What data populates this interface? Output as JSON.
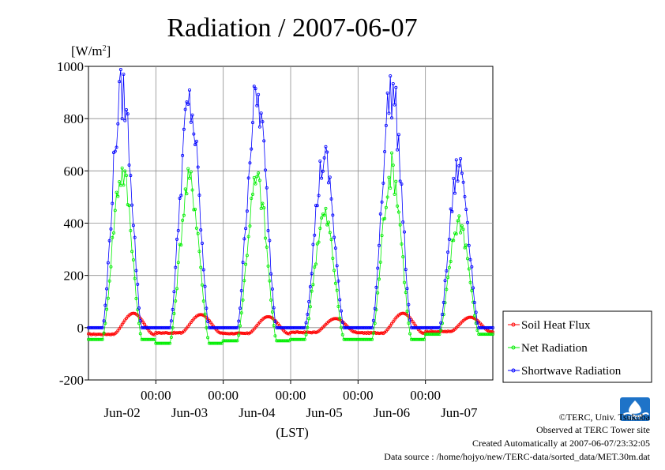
{
  "chart_data": {
    "type": "line",
    "title": "Radiation / 2007-06-07",
    "ylabel": "[W/m2]",
    "ylabel_main": "[W/m",
    "ylabel_sup": "2",
    "ylabel_close": "]",
    "xlabel": "(LST)",
    "ylim": [
      -200,
      1000
    ],
    "yticks": [
      -200,
      0,
      200,
      400,
      600,
      800,
      1000
    ],
    "ytick_labels": [
      "-200",
      "0",
      "200",
      "400",
      "600",
      "800",
      "1000"
    ],
    "xlim": [
      0,
      144
    ],
    "xticks": [
      {
        "hour": 24,
        "time": "00:00",
        "date": "Jun-02"
      },
      {
        "hour": 48,
        "time": "00:00",
        "date": "Jun-03"
      },
      {
        "hour": 72,
        "time": "00:00",
        "date": "Jun-04"
      },
      {
        "hour": 96,
        "time": "00:00",
        "date": "Jun-05"
      },
      {
        "hour": 120,
        "time": "00:00",
        "date": "Jun-06"
      },
      {
        "hour": 144,
        "time": "",
        "date": "Jun-07"
      }
    ],
    "grid": true,
    "legend_position": "right-bottom",
    "series": [
      {
        "name": "Soil Heat Flux",
        "color": "#ff0000",
        "marker": "circle",
        "profile": {
          "night": [
            -25,
            -20,
            -22,
            -18,
            -20,
            -15
          ],
          "peak": [
            55,
            50,
            42,
            35,
            55,
            40
          ],
          "day_offset": 4
        }
      },
      {
        "name": "Net Radiation",
        "color": "#00ee00",
        "marker": "circle",
        "profile": {
          "night": [
            -45,
            -60,
            -50,
            -45,
            -45,
            -25
          ],
          "peak": [
            640,
            600,
            600,
            460,
            650,
            440
          ],
          "day_offset": 0
        }
      },
      {
        "name": "Shortwave Radiation",
        "color": "#0000ff",
        "marker": "circle",
        "profile": {
          "night": [
            0,
            0,
            0,
            0,
            0,
            0
          ],
          "peak": [
            965,
            910,
            935,
            690,
            975,
            660
          ],
          "day_offset": 0
        }
      }
    ]
  },
  "credits": {
    "line1": "©TERC, Univ. Tsukuba",
    "line2": "Observed at TERC Tower site",
    "line3": "Created Automatically at 2007-06-07/23:32:05",
    "line4": "Data source : /home/hojyo/new/TERC-data/sorted_data/MET.30m.dat"
  },
  "logo": {
    "text": "TERC",
    "color": "#1e73c8"
  }
}
